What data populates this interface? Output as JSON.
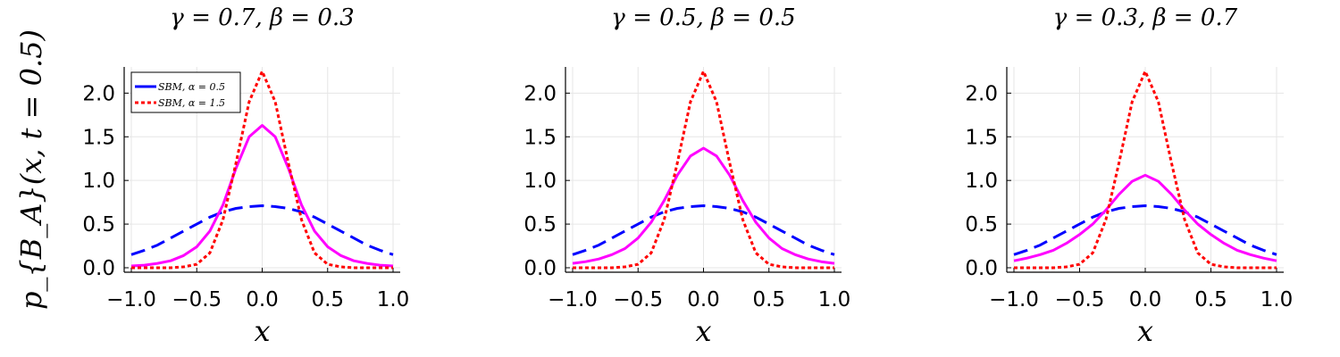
{
  "chart_data": [
    {
      "type": "line",
      "title": "γ = 0.7, β = 0.3",
      "xlabel": "x",
      "ylabel": "p_{B_A}(x, t = 0.5)",
      "xlim": [
        -1.0,
        1.0
      ],
      "ylim": [
        0.0,
        2.3
      ],
      "x_ticks": [
        "−1.0",
        "−0.5",
        "0.0",
        "0.5",
        "1.0"
      ],
      "y_ticks": [
        "0.0",
        "0.5",
        "1.0",
        "1.5",
        "2.0"
      ],
      "grid": true,
      "legend_position": "top-left",
      "legend": [
        "SBM, α = 0.5",
        "SBM, α = 1.5"
      ],
      "x": [
        -1.0,
        -0.9,
        -0.8,
        -0.7,
        -0.6,
        -0.5,
        -0.4,
        -0.3,
        -0.2,
        -0.1,
        0.0,
        0.1,
        0.2,
        0.3,
        0.4,
        0.5,
        0.6,
        0.7,
        0.8,
        0.9,
        1.0
      ],
      "series": [
        {
          "style": "blue-dash",
          "values": [
            0.15,
            0.2,
            0.26,
            0.34,
            0.42,
            0.5,
            0.58,
            0.64,
            0.68,
            0.7,
            0.71,
            0.7,
            0.68,
            0.64,
            0.58,
            0.5,
            0.42,
            0.34,
            0.26,
            0.2,
            0.15
          ]
        },
        {
          "style": "magenta-solid",
          "values": [
            0.02,
            0.03,
            0.05,
            0.08,
            0.14,
            0.24,
            0.42,
            0.72,
            1.14,
            1.5,
            1.63,
            1.5,
            1.14,
            0.72,
            0.42,
            0.24,
            0.14,
            0.08,
            0.05,
            0.03,
            0.02
          ]
        },
        {
          "style": "red-dot",
          "values": [
            0.0,
            0.0,
            0.0,
            0.0,
            0.01,
            0.04,
            0.17,
            0.55,
            1.2,
            1.9,
            2.25,
            1.9,
            1.2,
            0.55,
            0.17,
            0.04,
            0.01,
            0.0,
            0.0,
            0.0,
            0.0
          ]
        }
      ]
    },
    {
      "type": "line",
      "title": "γ = 0.5, β = 0.5",
      "xlabel": "x",
      "xlim": [
        -1.0,
        1.0
      ],
      "ylim": [
        0.0,
        2.3
      ],
      "x_ticks": [
        "−1.0",
        "−0.5",
        "0.0",
        "0.5",
        "1.0"
      ],
      "y_ticks": [
        "0.0",
        "0.5",
        "1.0",
        "1.5",
        "2.0"
      ],
      "grid": true,
      "x": [
        -1.0,
        -0.9,
        -0.8,
        -0.7,
        -0.6,
        -0.5,
        -0.4,
        -0.3,
        -0.2,
        -0.1,
        0.0,
        0.1,
        0.2,
        0.3,
        0.4,
        0.5,
        0.6,
        0.7,
        0.8,
        0.9,
        1.0
      ],
      "series": [
        {
          "style": "blue-dash",
          "values": [
            0.15,
            0.2,
            0.26,
            0.34,
            0.42,
            0.5,
            0.58,
            0.64,
            0.68,
            0.7,
            0.71,
            0.7,
            0.68,
            0.64,
            0.58,
            0.5,
            0.42,
            0.34,
            0.26,
            0.2,
            0.15
          ]
        },
        {
          "style": "magenta-solid",
          "values": [
            0.05,
            0.07,
            0.1,
            0.15,
            0.22,
            0.34,
            0.52,
            0.77,
            1.06,
            1.28,
            1.37,
            1.28,
            1.06,
            0.77,
            0.52,
            0.34,
            0.22,
            0.15,
            0.1,
            0.07,
            0.05
          ]
        },
        {
          "style": "red-dot",
          "values": [
            0.0,
            0.0,
            0.0,
            0.0,
            0.01,
            0.04,
            0.17,
            0.55,
            1.2,
            1.9,
            2.25,
            1.9,
            1.2,
            0.55,
            0.17,
            0.04,
            0.01,
            0.0,
            0.0,
            0.0,
            0.0
          ]
        }
      ]
    },
    {
      "type": "line",
      "title": "γ = 0.3, β = 0.7",
      "xlabel": "x",
      "xlim": [
        -1.0,
        1.0
      ],
      "ylim": [
        0.0,
        2.3
      ],
      "x_ticks": [
        "−1.0",
        "−0.5",
        "0.0",
        "0.5",
        "1.0"
      ],
      "y_ticks": [
        "0.0",
        "0.5",
        "1.0",
        "1.5",
        "2.0"
      ],
      "grid": true,
      "x": [
        -1.0,
        -0.9,
        -0.8,
        -0.7,
        -0.6,
        -0.5,
        -0.4,
        -0.3,
        -0.2,
        -0.1,
        0.0,
        0.1,
        0.2,
        0.3,
        0.4,
        0.5,
        0.6,
        0.7,
        0.8,
        0.9,
        1.0
      ],
      "series": [
        {
          "style": "blue-dash",
          "values": [
            0.15,
            0.2,
            0.26,
            0.34,
            0.42,
            0.5,
            0.58,
            0.64,
            0.68,
            0.7,
            0.71,
            0.7,
            0.68,
            0.64,
            0.58,
            0.5,
            0.42,
            0.34,
            0.26,
            0.2,
            0.15
          ]
        },
        {
          "style": "magenta-solid",
          "values": [
            0.08,
            0.11,
            0.15,
            0.2,
            0.28,
            0.38,
            0.5,
            0.66,
            0.84,
            0.99,
            1.06,
            0.99,
            0.84,
            0.66,
            0.5,
            0.38,
            0.28,
            0.2,
            0.15,
            0.11,
            0.08
          ]
        },
        {
          "style": "red-dot",
          "values": [
            0.0,
            0.0,
            0.0,
            0.0,
            0.01,
            0.04,
            0.17,
            0.55,
            1.2,
            1.9,
            2.25,
            1.9,
            1.2,
            0.55,
            0.17,
            0.04,
            0.01,
            0.0,
            0.0,
            0.0,
            0.0
          ]
        }
      ]
    }
  ],
  "colors": {
    "blue-dash": "#0000ff",
    "magenta-solid": "#ff00ff",
    "red-dot": "#ff0000",
    "grid": "#e6e6e6",
    "axis": "#000000"
  }
}
